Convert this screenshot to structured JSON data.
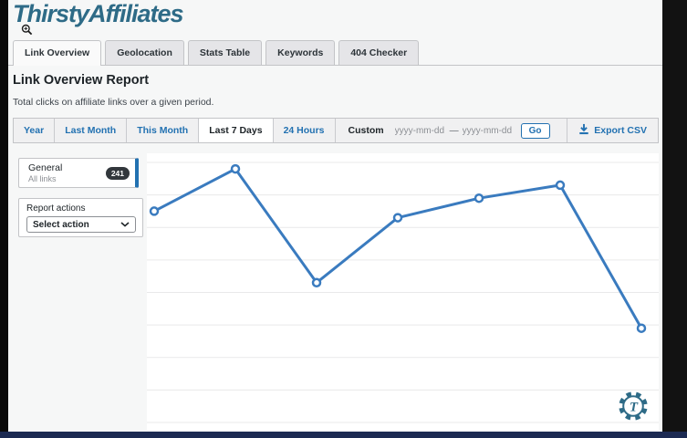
{
  "header": {
    "logo_text": "ThirstyAffiliates"
  },
  "tabs": [
    {
      "label": "Link Overview",
      "active": true
    },
    {
      "label": "Geolocation",
      "active": false
    },
    {
      "label": "Stats Table",
      "active": false
    },
    {
      "label": "Keywords",
      "active": false
    },
    {
      "label": "404 Checker",
      "active": false
    }
  ],
  "page": {
    "title": "Link Overview Report",
    "subtitle": "Total clicks on affiliate links over a given period."
  },
  "filters": {
    "ranges": [
      {
        "label": "Year"
      },
      {
        "label": "Last Month"
      },
      {
        "label": "This Month"
      },
      {
        "label": "Last 7 Days"
      },
      {
        "label": "24 Hours"
      }
    ],
    "active_range": "Last 7 Days",
    "custom": {
      "label": "Custom",
      "date_placeholder": "yyyy-mm-dd",
      "start_value": "",
      "end_value": "",
      "separator": "—",
      "go_label": "Go"
    },
    "export_label": "Export CSV"
  },
  "sidebar": {
    "general": {
      "title": "General",
      "subtitle": "All links",
      "count": "241"
    },
    "actions": {
      "label": "Report actions",
      "select_value": "Select action"
    }
  },
  "chart_data": {
    "type": "line",
    "title": "Total clicks on affiliate links over a given period (Last 7 Days)",
    "values": [
      65,
      78,
      43,
      63,
      69,
      73,
      29
    ],
    "points": 7,
    "x_tick_labels_visible": false,
    "y_tick_labels_visible": false,
    "ylim": [
      0,
      80
    ],
    "grid_step": 10,
    "grid": true,
    "legend": false,
    "marker": "open-circle"
  },
  "colors": {
    "accent": "#2271b1",
    "brand_teal": "#2e6b87",
    "chart_line": "#3a7bbf",
    "gridline": "#e9e9ea",
    "badge_bg": "#32373c",
    "bottom_bar": "#1c2a52"
  }
}
